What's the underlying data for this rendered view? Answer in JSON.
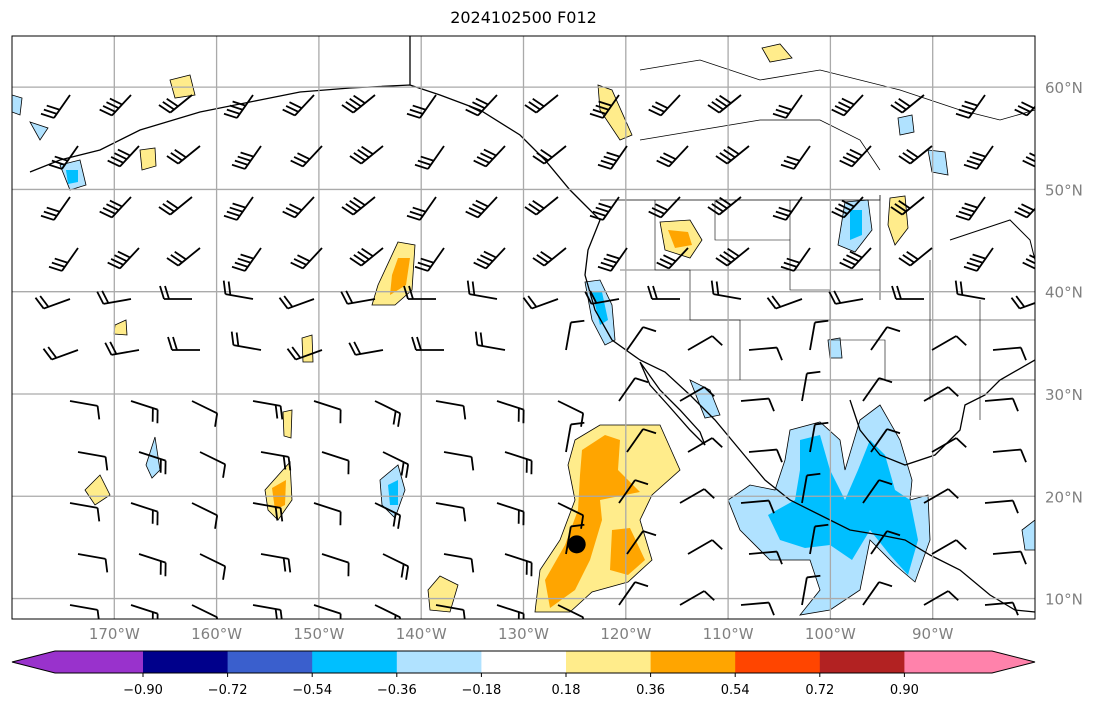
{
  "title": "2024102500 F012",
  "map": {
    "lon_ticks": [
      "170°W",
      "160°W",
      "150°W",
      "140°W",
      "130°W",
      "120°W",
      "110°W",
      "100°W",
      "90°W"
    ],
    "lat_ticks": [
      "10°N",
      "20°N",
      "30°N",
      "40°N",
      "50°N",
      "60°N"
    ],
    "extent": {
      "lon": [
        -180,
        -80
      ],
      "lat": [
        8,
        65
      ]
    },
    "marker": {
      "lon": -124.8,
      "lat": 15.3
    }
  },
  "colorbar": {
    "labels": [
      "−0.90",
      "−0.72",
      "−0.54",
      "−0.36",
      "−0.18",
      "0.18",
      "0.36",
      "0.54",
      "0.72",
      "0.90"
    ],
    "colors": [
      "#9932cc",
      "#00008b",
      "#3a5fcd",
      "#00bfff",
      "#b0e2ff",
      "#ffffff",
      "#ffec8b",
      "#ffa500",
      "#ff4500",
      "#b22222",
      "#ff82ab"
    ]
  }
}
